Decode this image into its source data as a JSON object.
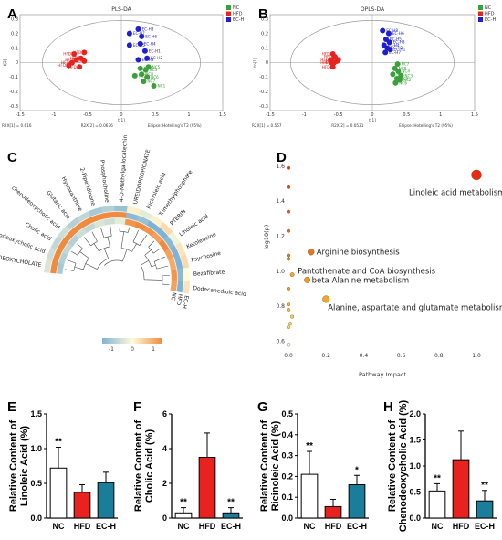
{
  "panels": {
    "A": "A",
    "B": "B",
    "C": "C",
    "D": "D",
    "E": "E",
    "F": "F",
    "G": "G",
    "H": "H"
  },
  "chart_data": [
    {
      "panel": "A",
      "type": "scatter",
      "title": "PLS-DA",
      "legend": [
        "NC",
        "HFD",
        "EC-H"
      ],
      "legend_position": "top-right",
      "colors": {
        "NC": "#3aa03a",
        "HFD": "#e8231f",
        "EC-H": "#1f1fd0"
      },
      "xticks": [
        "-1.5",
        "-1",
        "-0.5",
        "0",
        "0.5",
        "1",
        "1.5"
      ],
      "yticks": [
        "-0.3",
        "-0.2",
        "-0.1",
        "0",
        "0.1",
        "0.2",
        "0.3"
      ],
      "xlim": [
        -1.5,
        1.5
      ],
      "ylim": [
        -0.33,
        0.33
      ],
      "xlabel": "t[1]",
      "ylabel": "t[2]",
      "footer": [
        "R2X[1] = 0.616",
        "R2X[2] = 0.0676",
        "Ellipse: Hotelling's T2 (95%)"
      ],
      "ellipse": {
        "rx": 1.17,
        "ry": 0.29
      },
      "series": [
        {
          "name": "NC",
          "points": [
            [
              0.28,
              -0.04,
              "NC4"
            ],
            [
              0.3,
              -0.08,
              "NC8"
            ],
            [
              0.36,
              -0.05,
              "NC3"
            ],
            [
              0.38,
              -0.1,
              "NC6"
            ],
            [
              0.2,
              -0.09,
              "NC2"
            ],
            [
              0.33,
              -0.13,
              "NC7"
            ],
            [
              0.48,
              -0.16,
              "NC1"
            ],
            [
              0.4,
              -0.03,
              "NC5"
            ]
          ]
        },
        {
          "name": "HFD",
          "points": [
            [
              -0.7,
              0.06,
              "HFD5"
            ],
            [
              -0.55,
              0.07,
              "HFD6"
            ],
            [
              -0.67,
              0.02,
              "HFD7"
            ],
            [
              -0.55,
              0.01,
              "HFD4"
            ],
            [
              -0.73,
              0.0,
              "HFD8"
            ],
            [
              -0.78,
              -0.02,
              "HFD1"
            ],
            [
              -0.62,
              -0.03,
              "HFD3"
            ],
            [
              -0.6,
              0.03,
              "HFD2"
            ]
          ]
        },
        {
          "name": "EC-H",
          "points": [
            [
              0.25,
              0.23,
              "EC-H8"
            ],
            [
              0.12,
              0.2,
              "EC-H7"
            ],
            [
              0.3,
              0.18,
              "EC-H6"
            ],
            [
              0.28,
              0.13,
              "EC-H4"
            ],
            [
              0.12,
              0.12,
              "EC-H5"
            ],
            [
              0.35,
              0.08,
              "EC-H1"
            ],
            [
              0.38,
              0.03,
              "EC-H2"
            ],
            [
              0.25,
              0.02,
              "EC-H3"
            ]
          ]
        }
      ]
    },
    {
      "panel": "B",
      "type": "scatter",
      "title": "OPLS-DA",
      "legend": [
        "NC",
        "HFD",
        "EC-H"
      ],
      "legend_position": "top-right",
      "colors": {
        "NC": "#3aa03a",
        "HFD": "#e8231f",
        "EC-H": "#1f1fd0"
      },
      "xticks": [
        "-1.5",
        "-1",
        "-0.5",
        "0",
        "0.5",
        "1",
        "1.5"
      ],
      "yticks": [
        "-0.3",
        "-0.2",
        "-0.1",
        "0",
        "0.1",
        "0.2",
        "0.3"
      ],
      "xlim": [
        -1.5,
        1.5
      ],
      "ylim": [
        -0.33,
        0.33
      ],
      "xlabel": "t[1]",
      "ylabel": "to[1]",
      "footer": [
        "R2X[1] = 0.567",
        "R2X[2] = 0.0531",
        "Ellipse: Hotelling's T2 (95%)"
      ],
      "ellipse": {
        "rx": 1.2,
        "ry": 0.29
      },
      "series": [
        {
          "name": "NC",
          "points": [
            [
              0.33,
              -0.04,
              "NC8"
            ],
            [
              0.38,
              -0.06,
              "NC4"
            ],
            [
              0.42,
              -0.09,
              "NC3"
            ],
            [
              0.36,
              -0.11,
              "NC5"
            ],
            [
              0.3,
              -0.08,
              "NC1"
            ],
            [
              0.34,
              -0.14,
              "NC6"
            ],
            [
              0.4,
              -0.12,
              "NC2"
            ],
            [
              0.37,
              -0.01,
              "NC7"
            ]
          ]
        },
        {
          "name": "HFD",
          "points": [
            [
              -0.58,
              0.06,
              "HFD2"
            ],
            [
              -0.55,
              0.04,
              "HFD5"
            ],
            [
              -0.6,
              0.02,
              "HFD3"
            ],
            [
              -0.5,
              0.02,
              "HFD6"
            ],
            [
              -0.56,
              0.0,
              "HFD7"
            ],
            [
              -0.58,
              -0.03,
              "HFD4"
            ],
            [
              -0.52,
              0.01,
              "HFD8"
            ],
            [
              -0.6,
              0.0,
              "HFD1"
            ]
          ]
        },
        {
          "name": "EC-H",
          "points": [
            [
              0.15,
              0.22,
              "EC-H8"
            ],
            [
              0.24,
              0.2,
              "EC-H6"
            ],
            [
              0.2,
              0.16,
              "EC-H5"
            ],
            [
              0.25,
              0.14,
              "EC-H3"
            ],
            [
              0.17,
              0.12,
              "EC-H4"
            ],
            [
              0.22,
              0.1,
              "EC-H2"
            ],
            [
              0.26,
              0.09,
              "EC-H1"
            ],
            [
              0.19,
              0.07,
              "EC-H7"
            ]
          ]
        }
      ]
    },
    {
      "panel": "C",
      "type": "heatmap",
      "columns": [
        "NC",
        "HFD",
        "EC-H"
      ],
      "metabolites": [
        "DEOXYCHOLATE",
        "Hyodeoxycholic acid",
        "Cholic acid",
        "chenodeoxycholic acid",
        "Glutaric acid",
        "Hypoxanthine",
        "2-Piperidinone",
        "Phosphocholine",
        "4-O-Methylgallocatechin",
        "UREIDOPROPIONATE",
        "Ricinoleic acid",
        "Trimethylphosphate",
        "PTERIN",
        "Linoleic acid",
        "Ketoleucine",
        "Psychosine",
        "Bezafibrate",
        "Dodecanedioic acid"
      ],
      "values": [
        [
          -0.7,
          1.0,
          -0.3
        ],
        [
          -0.6,
          1.0,
          -0.4
        ],
        [
          -0.5,
          1.0,
          -0.5
        ],
        [
          -0.6,
          1.0,
          -0.4
        ],
        [
          -0.4,
          1.0,
          -0.6
        ],
        [
          -0.5,
          1.0,
          -0.5
        ],
        [
          -0.3,
          1.0,
          -0.7
        ],
        [
          -0.4,
          1.0,
          -0.6
        ],
        [
          -0.2,
          1.0,
          -0.8
        ],
        [
          0.9,
          -0.9,
          0.1
        ],
        [
          1.0,
          -0.8,
          -0.2
        ],
        [
          0.9,
          -1.0,
          0.1
        ],
        [
          0.8,
          -1.0,
          0.3
        ],
        [
          1.0,
          -0.9,
          -0.1
        ],
        [
          0.8,
          -1.0,
          0.2
        ],
        [
          0.7,
          -1.0,
          0.3
        ],
        [
          0.9,
          -0.9,
          0.0
        ],
        [
          0.8,
          -1.0,
          0.2
        ]
      ],
      "colorbar_ticks": [
        "-1",
        "0",
        "1"
      ],
      "colors": {
        "low": "#7fb3d5",
        "mid": "#fffbd8",
        "high": "#f08a3c"
      }
    },
    {
      "panel": "D",
      "type": "scatter",
      "xlabel": "Pathway Impact",
      "ylabel": "-log10(p)",
      "xticks": [
        "0.0",
        "0.2",
        "0.4",
        "0.6",
        "0.8",
        "1.0"
      ],
      "yticks": [
        "0.6",
        "0.8",
        "1.0",
        "1.2",
        "1.4",
        "1.6"
      ],
      "xlim": [
        0,
        1.0
      ],
      "ylim": [
        0.55,
        1.62
      ],
      "labels": [
        "Linoleic acid metabolism",
        "Arginine biosynthesis",
        "Pantothenate and CoA biosynthesis",
        "beta-Alanine metabolism",
        "Alanine, aspartate and glutamate metabolism"
      ],
      "points": [
        {
          "x": 1.0,
          "y": 1.55,
          "r": 5.5,
          "c": "#e62a14",
          "label": "Linoleic acid metabolism"
        },
        {
          "x": 0.12,
          "y": 1.11,
          "r": 3.5,
          "c": "#e8771c",
          "label": "Arginine biosynthesis"
        },
        {
          "x": 0.1,
          "y": 0.95,
          "r": 3.2,
          "c": "#eb9a2a",
          "label": "beta-Alanine metabolism"
        },
        {
          "x": 0.2,
          "y": 0.84,
          "r": 3.8,
          "c": "#f0a829",
          "label": "Alanine, aspartate and glutamate metabolism"
        },
        {
          "x": 0.02,
          "y": 0.98,
          "r": 2.2,
          "c": "#efaa32",
          "label": "Pantothenate and CoA biosynthesis"
        },
        {
          "x": 0.0,
          "y": 1.59,
          "r": 1.8,
          "c": "#d23b18"
        },
        {
          "x": 0.0,
          "y": 1.48,
          "r": 1.8,
          "c": "#d8491b"
        },
        {
          "x": 0.0,
          "y": 1.34,
          "r": 1.8,
          "c": "#dc581d"
        },
        {
          "x": 0.0,
          "y": 1.23,
          "r": 1.8,
          "c": "#e0661f"
        },
        {
          "x": 0.0,
          "y": 1.09,
          "r": 1.8,
          "c": "#e57a22"
        },
        {
          "x": 0.0,
          "y": 1.07,
          "r": 1.8,
          "c": "#e88224"
        },
        {
          "x": 0.0,
          "y": 0.9,
          "r": 1.8,
          "c": "#eda433"
        },
        {
          "x": 0.0,
          "y": 0.81,
          "r": 1.8,
          "c": "#f0b83e"
        },
        {
          "x": 0.0,
          "y": 0.78,
          "r": 1.8,
          "c": "#f2c54a"
        },
        {
          "x": 0.02,
          "y": 0.74,
          "r": 1.8,
          "c": "#f4d158"
        },
        {
          "x": 0.01,
          "y": 0.7,
          "r": 1.8,
          "c": "#f6dc66"
        },
        {
          "x": 0.0,
          "y": 0.68,
          "r": 1.8,
          "c": "#f7e170"
        },
        {
          "x": 0.0,
          "y": 0.58,
          "r": 2.0,
          "c": "#ffffff"
        }
      ]
    },
    {
      "panel": "E",
      "type": "bar",
      "ylabel": "Relative Content of Linoleic Acid (%)",
      "categories": [
        "NC",
        "HFD",
        "EC-H"
      ],
      "values": [
        0.72,
        0.37,
        0.51
      ],
      "errors": [
        0.3,
        0.11,
        0.15
      ],
      "significance": [
        "**",
        "",
        ""
      ],
      "ylim": [
        0,
        1.5
      ],
      "yticks": [
        "0.0",
        "0.5",
        "1.0",
        "1.5"
      ],
      "colors": [
        "#ffffff",
        "#e8231f",
        "#1a7e9a"
      ]
    },
    {
      "panel": "F",
      "type": "bar",
      "ylabel": "Relative Content of Cholic Acid (%)",
      "categories": [
        "NC",
        "HFD",
        "EC-H"
      ],
      "values": [
        0.3,
        3.5,
        0.3
      ],
      "errors": [
        0.3,
        1.4,
        0.3
      ],
      "significance": [
        "**",
        "",
        "**"
      ],
      "ylim": [
        0,
        6
      ],
      "yticks": [
        "0",
        "2",
        "4",
        "6"
      ],
      "colors": [
        "#ffffff",
        "#e8231f",
        "#1a7e9a"
      ]
    },
    {
      "panel": "G",
      "type": "bar",
      "ylabel": "Relative Content of Ricinoleic Acid (%)",
      "categories": [
        "NC",
        "HFD",
        "EC-H"
      ],
      "values": [
        0.21,
        0.055,
        0.16
      ],
      "errors": [
        0.11,
        0.035,
        0.045
      ],
      "significance": [
        "**",
        "",
        "*"
      ],
      "ylim": [
        0,
        0.5
      ],
      "yticks": [
        "0.0",
        "0.1",
        "0.2",
        "0.3",
        "0.4",
        "0.5"
      ],
      "colors": [
        "#ffffff",
        "#e8231f",
        "#1a7e9a"
      ]
    },
    {
      "panel": "H",
      "type": "bar",
      "ylabel": "Relative Content of Chenodeoxycholic Acid (%)",
      "categories": [
        "NC",
        "HFD",
        "EC-H"
      ],
      "values": [
        0.52,
        1.12,
        0.33
      ],
      "errors": [
        0.14,
        0.55,
        0.2
      ],
      "significance": [
        "**",
        "",
        "**"
      ],
      "ylim": [
        0,
        2.0
      ],
      "yticks": [
        "0.0",
        "0.5",
        "1.0",
        "1.5",
        "2.0"
      ],
      "colors": [
        "#ffffff",
        "#e8231f",
        "#1a7e9a"
      ]
    }
  ]
}
